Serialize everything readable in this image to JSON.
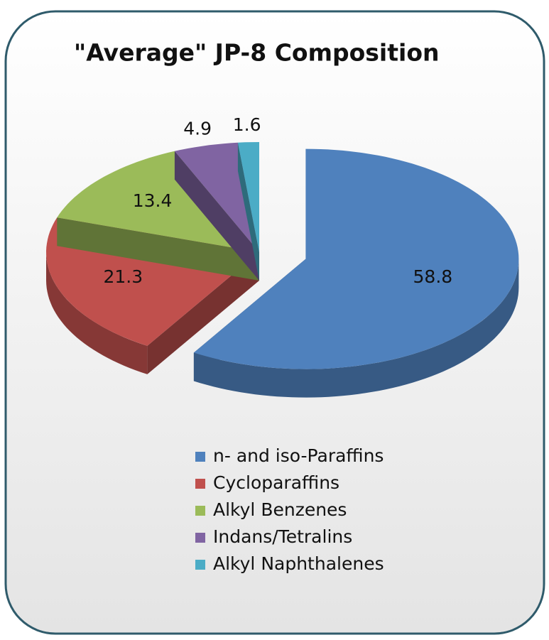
{
  "chart_data": {
    "type": "pie",
    "title": "\"Average\" JP-8 Composition",
    "categories": [
      "n- and iso-Paraffins",
      "Cycloparaffins",
      "Alkyl Benzenes",
      "Indans/Tetralins",
      "Alkyl Naphthalenes"
    ],
    "values": [
      58.8,
      21.3,
      13.4,
      4.9,
      1.6
    ],
    "colors": [
      "#4f81bd",
      "#c0504d",
      "#9bbb59",
      "#8064a2",
      "#4bacc6"
    ],
    "legend": "bottom"
  }
}
